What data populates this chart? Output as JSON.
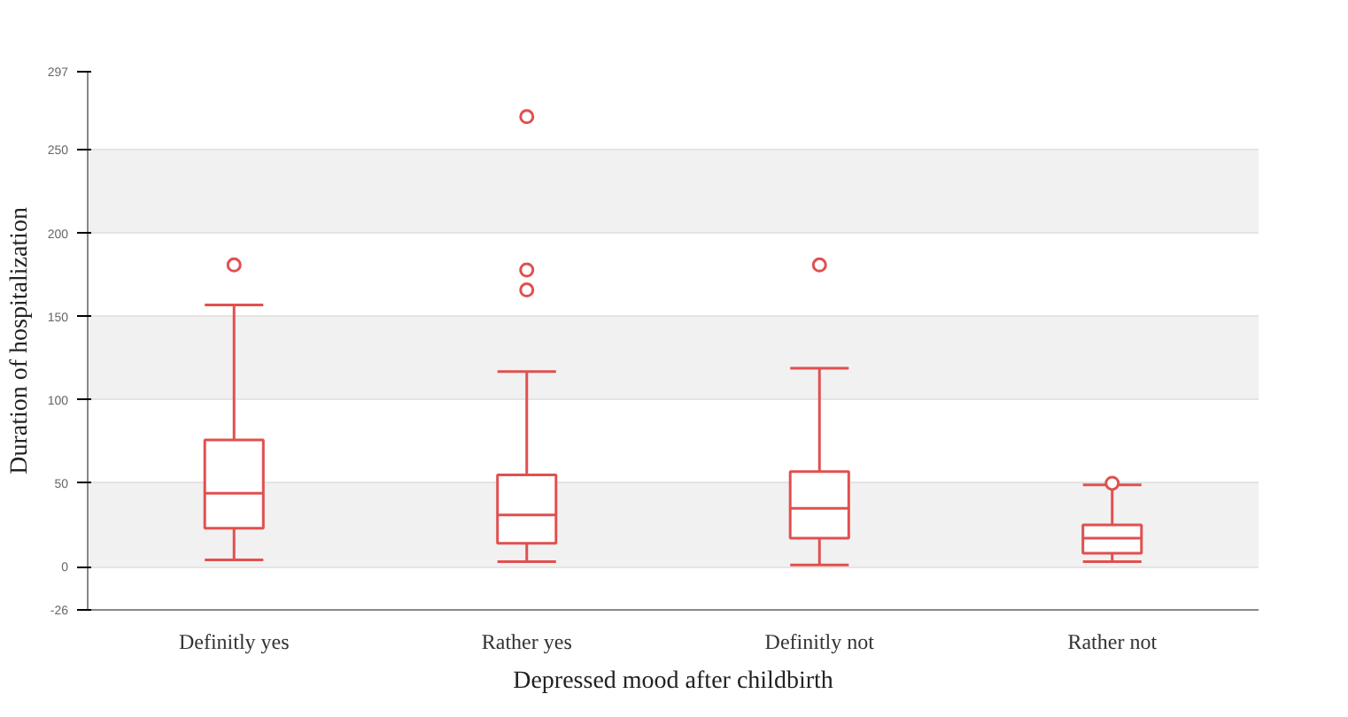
{
  "chart_data": {
    "type": "box",
    "xlabel": "Depressed mood after childbirth",
    "ylabel": "Duration of hospitalization",
    "categories": [
      "Definitly yes",
      "Rather yes",
      "Definitly not",
      "Rather not"
    ],
    "color": "#e0504f",
    "boxes": [
      {
        "low": 4,
        "q1": 23,
        "median": 44,
        "q3": 76,
        "high": 157,
        "outliers": [
          181
        ]
      },
      {
        "low": 3,
        "q1": 14,
        "median": 31,
        "q3": 55,
        "high": 117,
        "outliers": [
          270,
          178,
          166
        ]
      },
      {
        "low": 1,
        "q1": 17,
        "median": 35,
        "q3": 57,
        "high": 119,
        "outliers": [
          181
        ]
      },
      {
        "low": 3,
        "q1": 8,
        "median": 17,
        "q3": 25,
        "high": 49,
        "outliers": [
          50
        ]
      }
    ],
    "ylim": [
      -26,
      297
    ],
    "yticks": [
      -26,
      0,
      50,
      100,
      150,
      200,
      250,
      297
    ],
    "grid": "y"
  }
}
